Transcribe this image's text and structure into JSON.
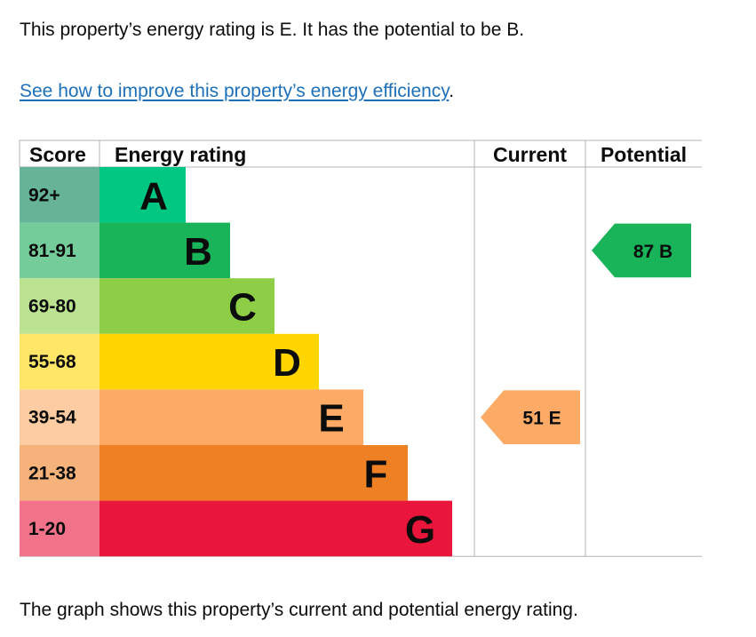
{
  "intro_text": "This property’s energy rating is E. It has the potential to be B.",
  "improve_link": "See how to improve this property’s energy efficiency",
  "improve_link_suffix": ".",
  "footer_text": "The graph shows this property’s current and potential energy rating.",
  "chart_data": {
    "type": "bar",
    "headers": {
      "score": "Score",
      "rating": "Energy rating",
      "current": "Current",
      "potential": "Potential"
    },
    "bands": [
      {
        "letter": "A",
        "score": "92+",
        "color": "#008054",
        "score_bg": "#66b398",
        "bar_color": "#00c781"
      },
      {
        "letter": "B",
        "score": "81-91",
        "color": "#19b459",
        "score_bg": "#75cc9b",
        "bar_color": "#19b459"
      },
      {
        "letter": "C",
        "score": "69-80",
        "color": "#8dce46",
        "score_bg": "#bbe290",
        "bar_color": "#8dce46"
      },
      {
        "letter": "D",
        "score": "55-68",
        "color": "#ffd500",
        "score_bg": "#ffe666",
        "bar_color": "#ffd500"
      },
      {
        "letter": "E",
        "score": "39-54",
        "color": "#fcaa65",
        "score_bg": "#fdcca3",
        "bar_color": "#fcaa65"
      },
      {
        "letter": "F",
        "score": "21-38",
        "color": "#ef8023",
        "score_bg": "#f5b37b",
        "bar_color": "#ef8023"
      },
      {
        "letter": "G",
        "score": "1-20",
        "color": "#e9153b",
        "score_bg": "#f27389",
        "bar_color": "#e9153b"
      }
    ],
    "current": {
      "value": 51,
      "letter": "E",
      "label": "51  E",
      "color": "#fcaa65"
    },
    "potential": {
      "value": 87,
      "letter": "B",
      "label": "87  B",
      "color": "#19b459"
    }
  }
}
